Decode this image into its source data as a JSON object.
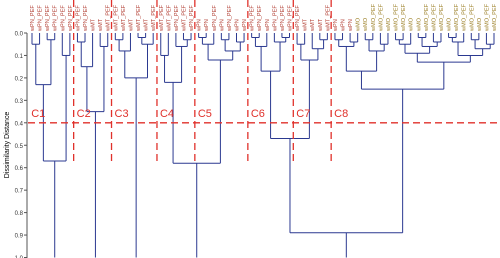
{
  "chart_data": {
    "type": "dendrogram",
    "y_label": "Dissimilarity Distance",
    "ylim": [
      0,
      1
    ],
    "yticks": [
      {
        "value": 0,
        "label": "0.0"
      },
      0.1,
      0.2,
      0.3,
      0.4,
      0.5,
      0.6,
      0.7,
      0.8,
      0.9,
      {
        "value": 1,
        "label": "1.0"
      }
    ],
    "cut_height": 0.4,
    "line_color": "#2b3990",
    "cut_color": "#e0312b",
    "tree": {
      "children": [
        {
          "cluster": "C1",
          "height": 0.57,
          "children": [
            {
              "height": 0.23,
              "children": [
                {
                  "height": 0.05,
                  "children": [
                    {
                      "label": "wPN_PEF",
                      "color": "#b03a2e"
                    },
                    {
                      "label": "wPN_PEF",
                      "color": "#b03a2e"
                    }
                  ]
                },
                {
                  "height": 0.03,
                  "children": [
                    {
                      "label": "wPN_PEF",
                      "color": "#b03a2e"
                    },
                    {
                      "label": "wPN_PEF",
                      "color": "#b03a2e"
                    }
                  ]
                }
              ]
            },
            {
              "height": 0.1,
              "children": [
                {
                  "label": "wPN_PEF",
                  "color": "#b03a2e"
                },
                {
                  "label": "wPN_PEF",
                  "color": "#b03a2e"
                }
              ]
            }
          ]
        },
        {
          "cluster": "C2",
          "height": 0.35,
          "children": [
            {
              "height": 0.15,
              "children": [
                {
                  "height": 0.04,
                  "children": [
                    {
                      "label": "wPN_PEF",
                      "color": "#b03a2e"
                    },
                    {
                      "label": "wPN_PEF",
                      "color": "#b03a2e"
                    }
                  ]
                },
                {
                  "label": "wMT",
                  "color": "#b03a2e"
                }
              ]
            },
            {
              "height": 0.06,
              "children": [
                {
                  "label": "wMT",
                  "color": "#b03a2e"
                },
                {
                  "label": "wMT_PEF",
                  "color": "#b03a2e"
                }
              ]
            }
          ]
        },
        {
          "cluster": "C3",
          "height": 0.2,
          "children": [
            {
              "height": 0.08,
              "children": [
                {
                  "height": 0.03,
                  "children": [
                    {
                      "label": "wMT_PEF",
                      "color": "#b03a2e"
                    },
                    {
                      "label": "wMT_PEF",
                      "color": "#b03a2e"
                    }
                  ]
                },
                {
                  "label": "wMT",
                  "color": "#b03a2e"
                }
              ]
            },
            {
              "height": 0.05,
              "children": [
                {
                  "height": 0.02,
                  "children": [
                    {
                      "label": "wMT_PEF",
                      "color": "#b03a2e"
                    },
                    {
                      "label": "wMT",
                      "color": "#b03a2e"
                    }
                  ]
                },
                {
                  "label": "wMT_PEF",
                  "color": "#b03a2e"
                }
              ]
            }
          ]
        },
        {
          "height": 0.58,
          "children": [
            {
              "cluster": "C4",
              "height": 0.22,
              "children": [
                {
                  "height": 0.1,
                  "children": [
                    {
                      "label": "wMT_PEF",
                      "color": "#b03a2e"
                    },
                    {
                      "label": "wMT_PEF",
                      "color": "#b03a2e"
                    }
                  ]
                },
                {
                  "height": 0.06,
                  "children": [
                    {
                      "label": "wPN_PEF",
                      "color": "#b03a2e"
                    },
                    {
                      "height": 0.03,
                      "children": [
                        {
                          "label": "wMT_PEF",
                          "color": "#b03a2e"
                        },
                        {
                          "label": "wPN_PEF",
                          "color": "#b03a2e"
                        }
                      ]
                    }
                  ]
                }
              ]
            },
            {
              "cluster": "C5",
              "height": 0.12,
              "children": [
                {
                  "height": 0.05,
                  "children": [
                    {
                      "height": 0.02,
                      "children": [
                        {
                          "label": "wPN",
                          "color": "#b03a2e"
                        },
                        {
                          "label": "wPN",
                          "color": "#b03a2e"
                        }
                      ]
                    },
                    {
                      "label": "wPN_PEF",
                      "color": "#b03a2e"
                    }
                  ]
                },
                {
                  "height": 0.08,
                  "children": [
                    {
                      "height": 0.03,
                      "children": [
                        {
                          "label": "wPN",
                          "color": "#b03a2e"
                        },
                        {
                          "label": "wPN_PEF",
                          "color": "#b03a2e"
                        }
                      ]
                    },
                    {
                      "height": 0.04,
                      "children": [
                        {
                          "label": "wPN",
                          "color": "#b03a2e"
                        },
                        {
                          "label": "wPN",
                          "color": "#b03a2e"
                        }
                      ]
                    }
                  ]
                }
              ]
            }
          ]
        },
        {
          "height": 0.89,
          "children": [
            {
              "height": 0.47,
              "children": [
                {
                  "cluster": "C6",
                  "height": 0.17,
                  "children": [
                    {
                      "height": 0.06,
                      "children": [
                        {
                          "height": 0.02,
                          "children": [
                            {
                              "label": "wPN_PEF",
                              "color": "#b03a2e"
                            },
                            {
                              "label": "wPN_PEF",
                              "color": "#b03a2e"
                            }
                          ]
                        },
                        {
                          "label": "wPN",
                          "color": "#b03a2e"
                        }
                      ]
                    },
                    {
                      "height": 0.04,
                      "children": [
                        {
                          "label": "wPN_PEF",
                          "color": "#b03a2e"
                        },
                        {
                          "height": 0.02,
                          "children": [
                            {
                              "label": "wPN_PEF",
                              "color": "#b03a2e"
                            },
                            {
                              "label": "wPN_PEF",
                              "color": "#b03a2e"
                            }
                          ]
                        }
                      ]
                    }
                  ]
                },
                {
                  "cluster": "C7",
                  "height": 0.12,
                  "children": [
                    {
                      "height": 0.05,
                      "children": [
                        {
                          "label": "wPN_PEF",
                          "color": "#b03a2e"
                        },
                        {
                          "label": "wMT",
                          "color": "#b03a2e"
                        }
                      ]
                    },
                    {
                      "height": 0.07,
                      "children": [
                        {
                          "label": "wMT",
                          "color": "#b03a2e"
                        },
                        {
                          "height": 0.03,
                          "children": [
                            {
                              "label": "wMT",
                              "color": "#b03a2e"
                            },
                            {
                              "label": "wMT_PEF",
                              "color": "#b03a2e"
                            }
                          ]
                        }
                      ]
                    }
                  ]
                }
              ]
            },
            {
              "cluster": "C8",
              "height": 0.25,
              "children": [
                {
                  "height": 0.17,
                  "children": [
                    {
                      "height": 0.06,
                      "children": [
                        {
                          "height": 0.03,
                          "children": [
                            {
                              "label": "wPN",
                              "color": "#b03a2e"
                            },
                            {
                              "label": "wPN",
                              "color": "#b03a2e"
                            }
                          ]
                        },
                        {
                          "height": 0.04,
                          "children": [
                            {
                              "label": "wPN",
                              "color": "#b03a2e"
                            },
                            {
                              "label": "wMO",
                              "color": "#9a7d22"
                            }
                          ]
                        }
                      ]
                    },
                    {
                      "height": 0.08,
                      "children": [
                        {
                          "height": 0.03,
                          "children": [
                            {
                              "label": "wMO",
                              "color": "#9a7d22"
                            },
                            {
                              "label": "wMO_PEF",
                              "color": "#9a7d22"
                            }
                          ]
                        },
                        {
                          "height": 0.05,
                          "children": [
                            {
                              "label": "wMO_PEF",
                              "color": "#9a7d22"
                            },
                            {
                              "label": "wMO",
                              "color": "#9a7d22"
                            }
                          ]
                        }
                      ]
                    }
                  ]
                },
                {
                  "height": 0.13,
                  "children": [
                    {
                      "height": 0.09,
                      "children": [
                        {
                          "height": 0.05,
                          "children": [
                            {
                              "height": 0.03,
                              "children": [
                                {
                                  "label": "wMO_PEF",
                                  "color": "#9a7d22"
                                },
                                {
                                  "label": "wMO_PEF",
                                  "color": "#9a7d22"
                                }
                              ]
                            },
                            {
                              "label": "wMO",
                              "color": "#9a7d22"
                            }
                          ]
                        },
                        {
                          "height": 0.06,
                          "children": [
                            {
                              "height": 0.02,
                              "children": [
                                {
                                  "label": "wMO",
                                  "color": "#9a7d22"
                                },
                                {
                                  "label": "wMO_PEF",
                                  "color": "#9a7d22"
                                }
                              ]
                            },
                            {
                              "height": 0.04,
                              "children": [
                                {
                                  "label": "wMO_PEF",
                                  "color": "#9a7d22"
                                },
                                {
                                  "label": "wMO_PEF",
                                  "color": "#9a7d22"
                                }
                              ]
                            }
                          ]
                        }
                      ]
                    },
                    {
                      "height": 0.1,
                      "children": [
                        {
                          "height": 0.04,
                          "children": [
                            {
                              "height": 0.02,
                              "children": [
                                {
                                  "label": "wMO",
                                  "color": "#9a7d22"
                                },
                                {
                                  "label": "wMO_PEF",
                                  "color": "#9a7d22"
                                }
                              ]
                            },
                            {
                              "label": "wMO_PEF",
                              "color": "#9a7d22"
                            }
                          ]
                        },
                        {
                          "height": 0.07,
                          "children": [
                            {
                              "height": 0.03,
                              "children": [
                                {
                                  "label": "wMO_PEF",
                                  "color": "#9a7d22"
                                },
                                {
                                  "label": "wMO",
                                  "color": "#9a7d22"
                                }
                              ]
                            },
                            {
                              "height": 0.05,
                              "children": [
                                {
                                  "label": "wMO_PEF",
                                  "color": "#9a7d22"
                                },
                                {
                                  "label": "wMO_PEF",
                                  "color": "#9a7d22"
                                }
                              ]
                            }
                          ]
                        }
                      ]
                    }
                  ]
                }
              ]
            }
          ]
        }
      ]
    }
  }
}
